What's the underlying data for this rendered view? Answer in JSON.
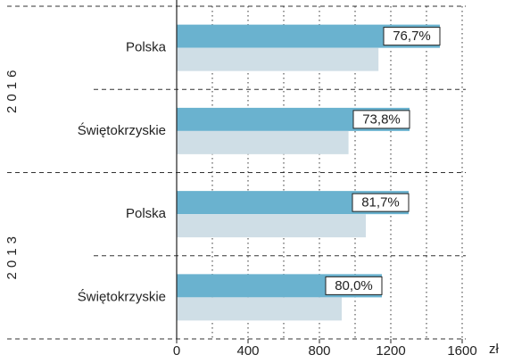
{
  "chart_data": {
    "type": "bar",
    "orientation": "horizontal",
    "categories": [
      "Polska",
      "Świętokrzyskie",
      "Polska",
      "Świętokrzyskie"
    ],
    "groups": [
      "2016",
      "2013"
    ],
    "series": [
      {
        "color": "#6ab2cf",
        "values": [
          1475,
          1305,
          1300,
          1150
        ]
      },
      {
        "color": "#cfdee6",
        "values": [
          1131,
          963,
          1060,
          925
        ]
      }
    ],
    "annotations": [
      "76,7%",
      "73,8%",
      "81,7%",
      "80,0%"
    ],
    "xlim": [
      0,
      1600
    ],
    "xticks": [
      0,
      400,
      800,
      1200,
      1600
    ],
    "xgrid": [
      200,
      400,
      600,
      800,
      1000,
      1200,
      1400,
      1600
    ],
    "xlabel": "zł"
  }
}
